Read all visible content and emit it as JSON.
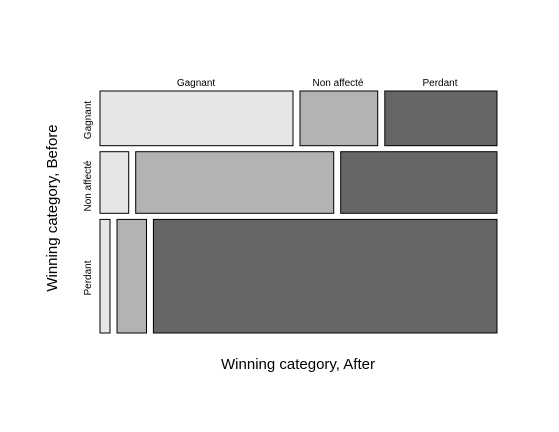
{
  "chart_data": {
    "type": "mosaic",
    "xlabel": "Winning category, After",
    "ylabel": "Winning category, Before",
    "columns": [
      "Gagnant",
      "Non affecté",
      "Perdant"
    ],
    "rows": [
      "Gagnant",
      "Non affecté",
      "Perdant"
    ],
    "row_shares": [
      0.238,
      0.268,
      0.494
    ],
    "cell_shares": [
      [
        0.504,
        0.203,
        0.293
      ],
      [
        0.075,
        0.517,
        0.408
      ],
      [
        0.026,
        0.077,
        0.897
      ]
    ],
    "column_colors": [
      "#e6e6e6",
      "#b3b3b3",
      "#666666"
    ]
  }
}
